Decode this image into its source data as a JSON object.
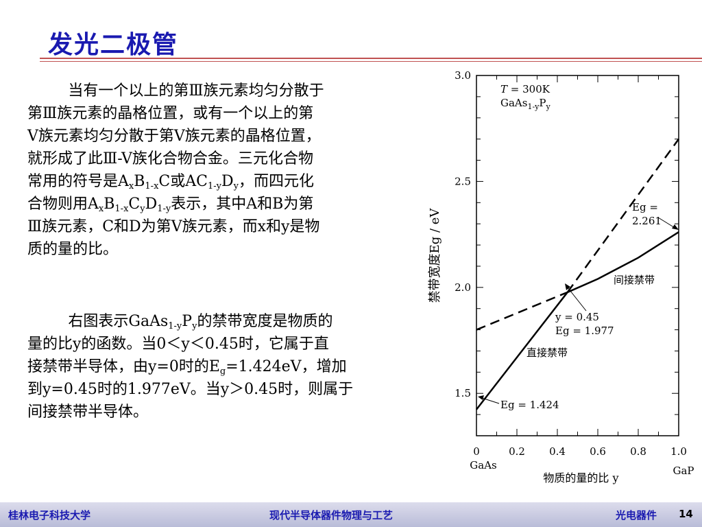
{
  "title": "发光二极管",
  "para1": [
    "当有一个以上的第Ⅲ族元素均匀分散于",
    "第Ⅲ族元素的晶格位置，或有一个以上的第",
    "V族元素均匀分散于第V族元素的晶格位置，",
    "就形成了此Ⅲ-V族化合物合金。三元化合物",
    [
      "常用的符号是A",
      "x",
      "B",
      "1-x",
      "C或AC",
      "1-y",
      "D",
      "y",
      "，而四元化"
    ],
    [
      "合物则用A",
      "x",
      "B",
      "1-x",
      "C",
      "y",
      "D",
      "1-y",
      "表示，其中A和B为第"
    ],
    "Ⅲ族元素，C和D为第V族元素，而x和y是物",
    "质的量的比。"
  ],
  "para2": [
    [
      "右图表示GaAs",
      "1-y",
      "P",
      "y",
      "的禁带宽度是物质的"
    ],
    "量的比y的函数。当0＜y＜0.45时，它属于直",
    "接禁带半导体，由y=0时的E",
    "=1.424eV，增加",
    "到y=0.45时的1.977eV。当y＞0.45时，则属于",
    "间接禁带半导体。"
  ],
  "para2_sub_g": "g",
  "chart_data": {
    "type": "line",
    "xlabel": "物质的量的比 y",
    "ylabel": "禁带宽度Eg / eV",
    "xlim": [
      0,
      1.0
    ],
    "ylim": [
      1.3,
      3.0
    ],
    "xticks": [
      "0",
      "0.2",
      "0.4",
      "0.6",
      "0.8",
      "1.0"
    ],
    "yticks": [
      "1.5",
      "2.0",
      "2.5",
      "3.0"
    ],
    "x_end_labels": {
      "left": "GaAs",
      "right": "GaP"
    },
    "annotations": {
      "temp": "T = 300K",
      "material_base": "GaAs",
      "material_sub": "1-y",
      "material_p": "P",
      "material_psub": "y",
      "eg_gap": "Eg =",
      "eg_gap_val": "2.261",
      "indirect": "间接禁带",
      "crossover_y": "y = 0.45",
      "crossover_eg": "Eg = 1.977",
      "direct": "直接禁带",
      "eg_start": "Eg = 1.424"
    },
    "series": [
      {
        "name": "直接禁带",
        "style": "solid",
        "x": [
          0,
          0.45
        ],
        "y": [
          1.424,
          1.977
        ]
      },
      {
        "name": "间接禁带",
        "style": "solid",
        "x": [
          0.45,
          0.6,
          0.8,
          1.0
        ],
        "y": [
          1.977,
          2.04,
          2.14,
          2.261
        ]
      },
      {
        "name": "direct-extrapolation",
        "style": "dashed",
        "x": [
          0.45,
          1.0
        ],
        "y": [
          1.977,
          2.7
        ]
      },
      {
        "name": "indirect-extrapolation",
        "style": "dashed",
        "x": [
          0,
          0.45
        ],
        "y": [
          1.8,
          1.977
        ]
      }
    ]
  },
  "footer": {
    "left": "桂林电子科技大学",
    "center": "现代半导体器件物理与工艺",
    "right": "光电器件",
    "page": "14"
  }
}
